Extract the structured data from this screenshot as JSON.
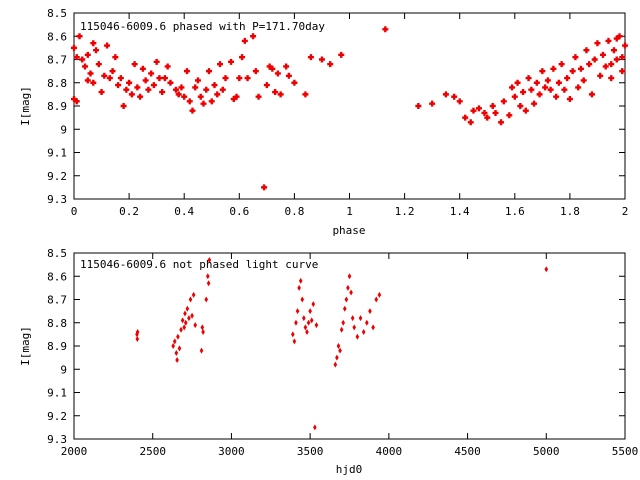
{
  "chart_data": [
    {
      "type": "scatter",
      "title": "115046-6009.6 phased with P=171.70day",
      "xlabel": "phase",
      "ylabel": "I[mag]",
      "xlim": [
        0,
        2
      ],
      "ylim": [
        9.3,
        8.5
      ],
      "y_inverted": true,
      "grid": false,
      "marker_color": "#ee0000",
      "xticks": [
        "0",
        "0.2",
        "0.4",
        "0.6",
        "0.8",
        "1",
        "1.2",
        "1.4",
        "1.6",
        "1.8",
        "2"
      ],
      "yticks": [
        "8.5",
        "8.6",
        "8.7",
        "8.8",
        "8.9",
        "9",
        "9.1",
        "9.2",
        "9.3"
      ],
      "points": [
        [
          0.0,
          8.65
        ],
        [
          0.01,
          8.69
        ],
        [
          0.0,
          8.87
        ],
        [
          0.01,
          8.88
        ],
        [
          0.02,
          8.6
        ],
        [
          0.03,
          8.7
        ],
        [
          0.04,
          8.73
        ],
        [
          0.05,
          8.68
        ],
        [
          0.05,
          8.79
        ],
        [
          0.06,
          8.76
        ],
        [
          0.07,
          8.63
        ],
        [
          0.07,
          8.8
        ],
        [
          0.08,
          8.66
        ],
        [
          0.09,
          8.72
        ],
        [
          0.1,
          8.84
        ],
        [
          0.11,
          8.77
        ],
        [
          0.12,
          8.64
        ],
        [
          0.13,
          8.78
        ],
        [
          0.14,
          8.75
        ],
        [
          0.15,
          8.69
        ],
        [
          0.16,
          8.81
        ],
        [
          0.17,
          8.78
        ],
        [
          0.18,
          8.9
        ],
        [
          0.19,
          8.83
        ],
        [
          0.2,
          8.8
        ],
        [
          0.21,
          8.85
        ],
        [
          0.22,
          8.72
        ],
        [
          0.23,
          8.82
        ],
        [
          0.24,
          8.86
        ],
        [
          0.25,
          8.74
        ],
        [
          0.26,
          8.79
        ],
        [
          0.27,
          8.83
        ],
        [
          0.28,
          8.76
        ],
        [
          0.29,
          8.81
        ],
        [
          0.3,
          8.71
        ],
        [
          0.31,
          8.78
        ],
        [
          0.32,
          8.84
        ],
        [
          0.33,
          8.78
        ],
        [
          0.34,
          8.73
        ],
        [
          0.35,
          8.8
        ],
        [
          0.37,
          8.83
        ],
        [
          0.38,
          8.85
        ],
        [
          0.39,
          8.82
        ],
        [
          0.4,
          8.86
        ],
        [
          0.41,
          8.75
        ],
        [
          0.42,
          8.88
        ],
        [
          0.43,
          8.92
        ],
        [
          0.44,
          8.82
        ],
        [
          0.45,
          8.79
        ],
        [
          0.46,
          8.86
        ],
        [
          0.47,
          8.89
        ],
        [
          0.48,
          8.83
        ],
        [
          0.49,
          8.75
        ],
        [
          0.5,
          8.88
        ],
        [
          0.51,
          8.81
        ],
        [
          0.52,
          8.85
        ],
        [
          0.53,
          8.72
        ],
        [
          0.54,
          8.83
        ],
        [
          0.55,
          8.78
        ],
        [
          0.57,
          8.71
        ],
        [
          0.58,
          8.87
        ],
        [
          0.59,
          8.86
        ],
        [
          0.6,
          8.78
        ],
        [
          0.61,
          8.69
        ],
        [
          0.62,
          8.62
        ],
        [
          0.63,
          8.78
        ],
        [
          0.65,
          8.6
        ],
        [
          0.66,
          8.75
        ],
        [
          0.67,
          8.86
        ],
        [
          0.69,
          9.25
        ],
        [
          0.7,
          8.81
        ],
        [
          0.71,
          8.73
        ],
        [
          0.72,
          8.74
        ],
        [
          0.73,
          8.84
        ],
        [
          0.74,
          8.76
        ],
        [
          0.75,
          8.85
        ],
        [
          0.77,
          8.73
        ],
        [
          0.78,
          8.77
        ],
        [
          0.8,
          8.8
        ],
        [
          0.84,
          8.85
        ],
        [
          0.86,
          8.69
        ],
        [
          0.9,
          8.7
        ],
        [
          0.93,
          8.72
        ],
        [
          0.97,
          8.68
        ],
        [
          1.13,
          8.57
        ],
        [
          1.25,
          8.9
        ],
        [
          1.3,
          8.89
        ],
        [
          1.35,
          8.85
        ],
        [
          1.38,
          8.86
        ],
        [
          1.4,
          8.88
        ],
        [
          1.42,
          8.95
        ],
        [
          1.44,
          8.97
        ],
        [
          1.45,
          8.92
        ],
        [
          1.47,
          8.91
        ],
        [
          1.49,
          8.93
        ],
        [
          1.5,
          8.95
        ],
        [
          1.52,
          8.9
        ],
        [
          1.53,
          8.93
        ],
        [
          1.55,
          8.97
        ],
        [
          1.56,
          8.88
        ],
        [
          1.58,
          8.94
        ],
        [
          1.59,
          8.82
        ],
        [
          1.6,
          8.86
        ],
        [
          1.61,
          8.8
        ],
        [
          1.62,
          8.9
        ],
        [
          1.63,
          8.84
        ],
        [
          1.64,
          8.92
        ],
        [
          1.65,
          8.78
        ],
        [
          1.66,
          8.83
        ],
        [
          1.67,
          8.89
        ],
        [
          1.68,
          8.8
        ],
        [
          1.69,
          8.85
        ],
        [
          1.7,
          8.75
        ],
        [
          1.71,
          8.82
        ],
        [
          1.72,
          8.79
        ],
        [
          1.73,
          8.83
        ],
        [
          1.74,
          8.74
        ],
        [
          1.75,
          8.86
        ],
        [
          1.76,
          8.8
        ],
        [
          1.77,
          8.72
        ],
        [
          1.78,
          8.83
        ],
        [
          1.79,
          8.78
        ],
        [
          1.8,
          8.87
        ],
        [
          1.81,
          8.75
        ],
        [
          1.82,
          8.69
        ],
        [
          1.83,
          8.82
        ],
        [
          1.84,
          8.74
        ],
        [
          1.85,
          8.79
        ],
        [
          1.86,
          8.66
        ],
        [
          1.87,
          8.72
        ],
        [
          1.88,
          8.85
        ],
        [
          1.89,
          8.7
        ],
        [
          1.9,
          8.63
        ],
        [
          1.91,
          8.77
        ],
        [
          1.92,
          8.68
        ],
        [
          1.93,
          8.73
        ],
        [
          1.94,
          8.62
        ],
        [
          1.95,
          8.78
        ],
        [
          1.96,
          8.66
        ],
        [
          1.97,
          8.7
        ],
        [
          1.98,
          8.6
        ],
        [
          1.99,
          8.75
        ],
        [
          2.0,
          8.64
        ],
        [
          1.99,
          8.69
        ],
        [
          1.97,
          8.61
        ],
        [
          1.95,
          8.72
        ]
      ]
    },
    {
      "type": "scatter",
      "title": "115046-6009.6 not phased light curve",
      "xlabel": "hjd0",
      "ylabel": "I[mag]",
      "xlim": [
        2000,
        5500
      ],
      "ylim": [
        9.3,
        8.5
      ],
      "y_inverted": true,
      "grid": false,
      "marker_color": "#ee0000",
      "xticks": [
        "2000",
        "2500",
        "3000",
        "3500",
        "4000",
        "4500",
        "5000",
        "5500"
      ],
      "yticks": [
        "8.5",
        "8.6",
        "8.7",
        "8.8",
        "8.9",
        "9",
        "9.1",
        "9.2",
        "9.3"
      ],
      "points": [
        [
          2400,
          8.85
        ],
        [
          2402,
          8.87
        ],
        [
          2404,
          8.84
        ],
        [
          2630,
          8.9
        ],
        [
          2640,
          8.88
        ],
        [
          2650,
          8.93
        ],
        [
          2655,
          8.96
        ],
        [
          2660,
          8.86
        ],
        [
          2670,
          8.91
        ],
        [
          2680,
          8.83
        ],
        [
          2690,
          8.79
        ],
        [
          2700,
          8.82
        ],
        [
          2705,
          8.76
        ],
        [
          2710,
          8.8
        ],
        [
          2720,
          8.74
        ],
        [
          2730,
          8.78
        ],
        [
          2740,
          8.7
        ],
        [
          2750,
          8.77
        ],
        [
          2760,
          8.68
        ],
        [
          2770,
          8.81
        ],
        [
          2810,
          8.92
        ],
        [
          2815,
          8.82
        ],
        [
          2820,
          8.84
        ],
        [
          2840,
          8.7
        ],
        [
          2850,
          8.6
        ],
        [
          2855,
          8.63
        ],
        [
          2860,
          8.53
        ],
        [
          3390,
          8.85
        ],
        [
          3400,
          8.88
        ],
        [
          3410,
          8.8
        ],
        [
          3420,
          8.75
        ],
        [
          3430,
          8.65
        ],
        [
          3440,
          8.62
        ],
        [
          3450,
          8.7
        ],
        [
          3460,
          8.78
        ],
        [
          3470,
          8.82
        ],
        [
          3480,
          8.84
        ],
        [
          3490,
          8.8
        ],
        [
          3500,
          8.75
        ],
        [
          3510,
          8.79
        ],
        [
          3520,
          8.72
        ],
        [
          3530,
          9.25
        ],
        [
          3540,
          8.81
        ],
        [
          3660,
          8.98
        ],
        [
          3670,
          8.95
        ],
        [
          3680,
          8.9
        ],
        [
          3690,
          8.92
        ],
        [
          3700,
          8.83
        ],
        [
          3710,
          8.8
        ],
        [
          3720,
          8.74
        ],
        [
          3730,
          8.7
        ],
        [
          3740,
          8.65
        ],
        [
          3750,
          8.6
        ],
        [
          3760,
          8.67
        ],
        [
          3770,
          8.78
        ],
        [
          3780,
          8.82
        ],
        [
          3800,
          8.86
        ],
        [
          3820,
          8.78
        ],
        [
          3840,
          8.84
        ],
        [
          3860,
          8.8
        ],
        [
          3880,
          8.75
        ],
        [
          3900,
          8.82
        ],
        [
          3920,
          8.7
        ],
        [
          3940,
          8.68
        ],
        [
          5000,
          8.57
        ]
      ]
    }
  ]
}
